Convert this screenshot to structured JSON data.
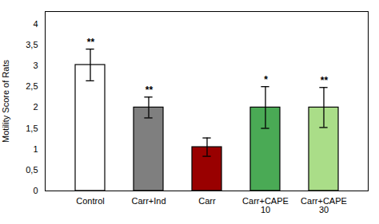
{
  "chart_data": {
    "type": "bar",
    "categories": [
      "Control",
      "Carr+Ind",
      "Carr",
      "Carr+CAPE\n10",
      "Carr+CAPE\n30"
    ],
    "values": [
      3.02,
      2.0,
      1.05,
      2.0,
      2.0
    ],
    "errors": [
      0.38,
      0.25,
      0.22,
      0.5,
      0.48
    ],
    "colors": [
      "#ffffff",
      "#7f7f7f",
      "#990000",
      "#4aaa55",
      "#aadd88"
    ],
    "ylabel": "Motility Score of Rats",
    "ylim": [
      0,
      4.3
    ],
    "yticks": [
      0,
      {
        "value": 0.5,
        "label": "0,5"
      },
      1,
      {
        "value": 1.5,
        "label": "1,5"
      },
      2,
      {
        "value": 2.5,
        "label": "2,5"
      },
      3,
      {
        "value": 3.5,
        "label": "3,5"
      },
      4
    ],
    "grid": false,
    "annotations": [
      {
        "category": "Control",
        "text": "**"
      },
      {
        "category": "Carr+Ind",
        "text": "**"
      },
      {
        "category": "Carr+CAPE\n10",
        "text": "*"
      },
      {
        "category": "Carr+CAPE\n30",
        "text": "**"
      }
    ]
  }
}
